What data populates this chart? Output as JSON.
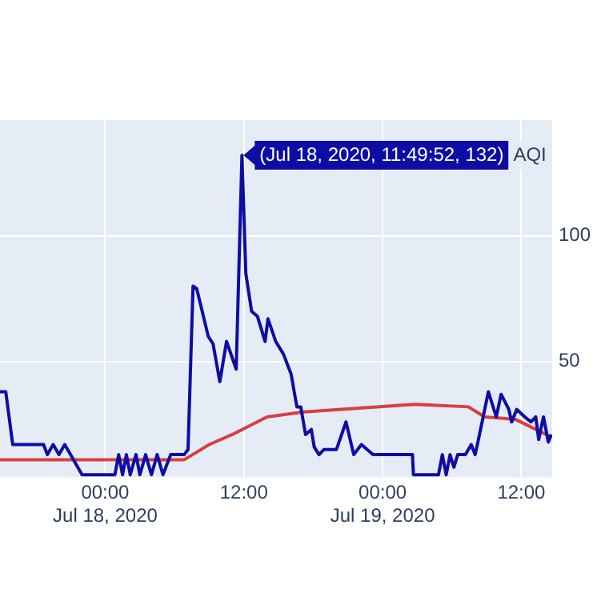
{
  "chart_data": {
    "type": "line",
    "series": [
      {
        "name": "AQI",
        "color": "#0d0da6",
        "x": [
          "2020-07-17T14:54",
          "2020-07-17T15:24",
          "2020-07-17T16:00",
          "2020-07-17T18:40",
          "2020-07-17T19:00",
          "2020-07-17T19:30",
          "2020-07-17T20:00",
          "2020-07-17T20:30",
          "2020-07-17T21:00",
          "2020-07-17T22:00",
          "2020-07-18T00:50",
          "2020-07-18T01:10",
          "2020-07-18T01:30",
          "2020-07-18T01:50",
          "2020-07-18T02:10",
          "2020-07-18T02:40",
          "2020-07-18T03:00",
          "2020-07-18T03:30",
          "2020-07-18T04:00",
          "2020-07-18T04:30",
          "2020-07-18T05:00",
          "2020-07-18T05:40",
          "2020-07-18T06:10",
          "2020-07-18T06:50",
          "2020-07-18T07:10",
          "2020-07-18T07:36",
          "2020-07-18T07:55",
          "2020-07-18T08:55",
          "2020-07-18T09:20",
          "2020-07-18T09:55",
          "2020-07-18T10:30",
          "2020-07-18T11:20",
          "2020-07-18T11:49:52",
          "2020-07-18T12:10",
          "2020-07-18T12:40",
          "2020-07-18T13:10",
          "2020-07-18T13:50",
          "2020-07-18T14:05",
          "2020-07-18T14:45",
          "2020-07-18T15:25",
          "2020-07-18T16:05",
          "2020-07-18T16:35",
          "2020-07-18T16:55",
          "2020-07-18T17:20",
          "2020-07-18T17:50",
          "2020-07-18T18:05",
          "2020-07-18T18:30",
          "2020-07-18T18:55",
          "2020-07-18T20:00",
          "2020-07-18T20:50",
          "2020-07-18T21:30",
          "2020-07-18T22:10",
          "2020-07-18T23:10",
          "2020-07-19T02:35",
          "2020-07-19T02:40",
          "2020-07-19T04:50",
          "2020-07-19T05:10",
          "2020-07-19T05:30",
          "2020-07-19T05:50",
          "2020-07-19T06:10",
          "2020-07-19T06:30",
          "2020-07-19T07:10",
          "2020-07-19T07:40",
          "2020-07-19T08:00",
          "2020-07-19T08:12",
          "2020-07-19T09:09",
          "2020-07-19T09:50",
          "2020-07-19T10:15",
          "2020-07-19T10:55",
          "2020-07-19T11:10",
          "2020-07-19T11:36",
          "2020-07-19T12:18",
          "2020-07-19T12:50",
          "2020-07-19T13:15",
          "2020-07-19T13:30",
          "2020-07-19T13:55",
          "2020-07-19T14:20",
          "2020-07-19T14:36"
        ],
        "values": [
          38,
          38,
          17,
          17,
          13,
          17,
          13,
          17,
          13,
          5,
          5,
          13,
          5,
          13,
          5,
          13,
          5,
          13,
          5,
          13,
          5,
          13,
          13,
          13,
          15,
          80,
          79,
          60,
          57,
          42,
          58,
          47,
          132,
          85,
          70,
          68,
          58,
          67,
          58,
          53,
          45,
          32,
          32,
          21,
          23,
          16,
          13,
          15,
          15,
          26,
          13,
          17,
          13,
          13,
          5,
          5,
          13,
          5,
          13,
          8,
          13,
          13,
          17,
          13,
          17,
          38,
          28,
          37,
          31,
          26,
          31,
          28,
          26,
          28,
          19,
          28,
          18,
          21
        ]
      },
      {
        "color": "#d84040",
        "x": [
          "2020-07-17T14:54",
          "2020-07-18T06:50",
          "2020-07-18T09:00",
          "2020-07-18T11:00",
          "2020-07-18T14:00",
          "2020-07-18T17:10",
          "2020-07-19T02:50",
          "2020-07-19T07:25",
          "2020-07-19T08:50",
          "2020-07-19T11:30",
          "2020-07-19T14:36"
        ],
        "values": [
          11,
          11,
          17,
          21,
          28,
          30,
          33,
          32,
          28,
          27,
          20
        ]
      }
    ],
    "annotations": [
      {
        "text": "(Jul 18, 2020, 11:49:52, 132)",
        "x": "2020-07-18T11:49:52",
        "y": 132
      }
    ],
    "xlim": [
      "2020-07-17T14:54",
      "2020-07-19T14:40"
    ],
    "xticks": [
      {
        "value": "2020-07-18T00:00",
        "label": "00:00\nJul 18, 2020"
      },
      {
        "value": "2020-07-18T12:00",
        "label": "12:00"
      },
      {
        "value": "2020-07-19T00:00",
        "label": "00:00\nJul 19, 2020"
      },
      {
        "value": "2020-07-19T12:00",
        "label": "12:00"
      }
    ],
    "ylim": [
      4,
      146
    ],
    "yticks": [
      50,
      100
    ],
    "grid": true
  }
}
